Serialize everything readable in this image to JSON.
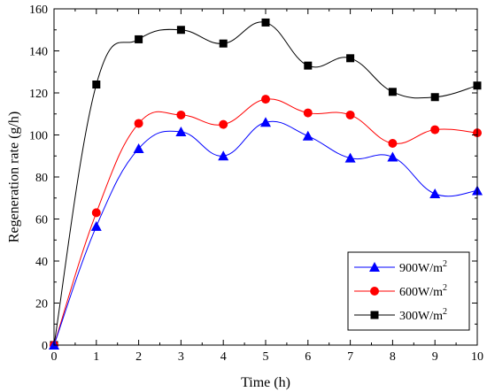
{
  "chart_data": {
    "type": "line",
    "xlabel": "Time (h)",
    "ylabel": "Regeneration rate (g/h)",
    "xlim": [
      0,
      10
    ],
    "ylim": [
      0,
      160
    ],
    "x_ticks": [
      "0",
      "1",
      "2",
      "3",
      "4",
      "5",
      "6",
      "7",
      "8",
      "9",
      "10"
    ],
    "y_ticks": [
      "0",
      "20",
      "40",
      "60",
      "80",
      "100",
      "120",
      "140",
      "160"
    ],
    "grid": false,
    "legend_position": "bottom-right",
    "x": [
      0,
      1,
      2,
      3,
      4,
      5,
      6,
      7,
      8,
      9,
      10
    ],
    "series": [
      {
        "name": "900W/m",
        "name_sup": "2",
        "color": "#0000ff",
        "marker": "triangle",
        "values": [
          0,
          56.5,
          93.5,
          101.5,
          90,
          106,
          99.5,
          89,
          89.5,
          72,
          73.5
        ]
      },
      {
        "name": "600W/m",
        "name_sup": "2",
        "color": "#ff0000",
        "marker": "circle",
        "values": [
          0,
          63,
          105.5,
          109.5,
          105,
          117,
          110.5,
          109.5,
          96,
          102.5,
          101
        ]
      },
      {
        "name": "300W/m",
        "name_sup": "2",
        "color": "#000000",
        "marker": "square",
        "values": [
          0,
          124,
          145.5,
          150,
          143.5,
          153.5,
          133,
          136.5,
          120.5,
          118,
          123.5
        ]
      }
    ]
  }
}
